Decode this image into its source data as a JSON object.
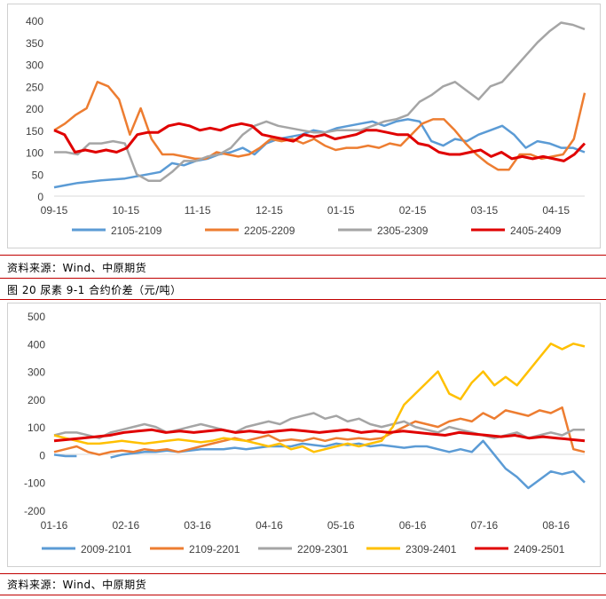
{
  "source_top": "资料来源：Wind、中原期货",
  "figure2_title": "图 20 尿素 9-1 合约价差（元/吨）",
  "source_bottom": "资料来源：Wind、中原期货",
  "chart_data": [
    {
      "type": "line",
      "title": "",
      "x_ticks": [
        "09-15",
        "10-15",
        "11-15",
        "12-15",
        "01-15",
        "02-15",
        "03-15",
        "04-15"
      ],
      "y_ticks": [
        "0",
        "50",
        "100",
        "150",
        "200",
        "250",
        "300",
        "350",
        "400"
      ],
      "ylim": [
        0,
        400
      ],
      "grid": false,
      "legend_position": "bottom",
      "series": [
        {
          "name": "2105-2109",
          "color": "#5b9bd5",
          "values": [
            20,
            25,
            30,
            33,
            36,
            38,
            40,
            45,
            50,
            55,
            75,
            70,
            80,
            85,
            95,
            100,
            110,
            95,
            120,
            130,
            135,
            140,
            150,
            145,
            155,
            160,
            165,
            170,
            160,
            170,
            175,
            170,
            125,
            115,
            130,
            125,
            140,
            150,
            160,
            140,
            110,
            125,
            120,
            110,
            110,
            100
          ]
        },
        {
          "name": "2205-2209",
          "color": "#ed7d31",
          "values": [
            150,
            165,
            185,
            200,
            260,
            250,
            220,
            140,
            200,
            130,
            95,
            95,
            90,
            85,
            85,
            100,
            95,
            90,
            95,
            110,
            130,
            125,
            130,
            120,
            130,
            115,
            105,
            110,
            110,
            115,
            110,
            120,
            115,
            140,
            165,
            175,
            175,
            150,
            120,
            95,
            75,
            60,
            60,
            95,
            95,
            85,
            90,
            95,
            130,
            235
          ]
        },
        {
          "name": "2305-2309",
          "color": "#a5a5a5",
          "values": [
            100,
            100,
            95,
            120,
            120,
            125,
            120,
            50,
            35,
            35,
            55,
            80,
            80,
            90,
            95,
            110,
            140,
            160,
            170,
            160,
            155,
            150,
            145,
            145,
            150,
            150,
            150,
            160,
            170,
            175,
            185,
            215,
            230,
            250,
            260,
            240,
            220,
            250,
            260,
            290,
            320,
            350,
            375,
            395,
            390,
            380
          ]
        },
        {
          "name": "2405-2409",
          "color": "#e00000",
          "values": [
            150,
            140,
            100,
            105,
            100,
            105,
            100,
            110,
            140,
            145,
            145,
            160,
            165,
            160,
            150,
            155,
            150,
            160,
            165,
            160,
            140,
            135,
            130,
            125,
            140,
            135,
            140,
            130,
            135,
            140,
            150,
            150,
            145,
            140,
            140,
            120,
            115,
            100,
            95,
            95,
            100,
            105,
            90,
            100,
            85,
            90,
            85,
            90,
            85,
            80,
            95,
            120
          ]
        }
      ]
    },
    {
      "type": "line",
      "title": "",
      "x_ticks": [
        "01-16",
        "02-16",
        "03-16",
        "04-16",
        "05-16",
        "06-16",
        "07-16",
        "08-16"
      ],
      "y_ticks": [
        "-200",
        "-100",
        "0",
        "100",
        "200",
        "300",
        "400",
        "500"
      ],
      "ylim": [
        -200,
        500
      ],
      "grid": false,
      "legend_position": "bottom",
      "series": [
        {
          "name": "2009-2101",
          "color": "#5b9bd5",
          "values": [
            0,
            -5,
            -5,
            null,
            null,
            -10,
            0,
            5,
            10,
            10,
            15,
            10,
            15,
            20,
            20,
            20,
            25,
            20,
            25,
            30,
            30,
            30,
            40,
            35,
            30,
            40,
            35,
            40,
            30,
            35,
            30,
            25,
            30,
            30,
            20,
            10,
            20,
            10,
            50,
            0,
            -50,
            -80,
            -120,
            -90,
            -60,
            -70,
            -60,
            -100
          ]
        },
        {
          "name": "2109-2201",
          "color": "#ed7d31",
          "values": [
            10,
            20,
            30,
            10,
            0,
            10,
            15,
            10,
            20,
            15,
            20,
            10,
            20,
            30,
            40,
            50,
            60,
            50,
            60,
            70,
            50,
            55,
            50,
            60,
            50,
            60,
            55,
            60,
            55,
            60,
            80,
            100,
            120,
            110,
            100,
            120,
            130,
            120,
            150,
            130,
            160,
            150,
            140,
            160,
            150,
            170,
            20,
            10
          ]
        },
        {
          "name": "2209-2301",
          "color": "#a5a5a5",
          "values": [
            70,
            80,
            80,
            70,
            60,
            80,
            90,
            100,
            110,
            100,
            80,
            90,
            100,
            110,
            100,
            90,
            80,
            100,
            110,
            120,
            110,
            130,
            140,
            150,
            130,
            140,
            120,
            130,
            110,
            100,
            110,
            120,
            100,
            90,
            80,
            100,
            90,
            80,
            70,
            60,
            70,
            80,
            60,
            70,
            80,
            70,
            90,
            90
          ]
        },
        {
          "name": "2309-2401",
          "color": "#ffc000",
          "values": [
            70,
            60,
            50,
            40,
            40,
            45,
            50,
            45,
            40,
            45,
            50,
            55,
            50,
            45,
            50,
            60,
            55,
            50,
            40,
            30,
            40,
            20,
            30,
            10,
            20,
            30,
            40,
            30,
            40,
            50,
            100,
            180,
            220,
            260,
            300,
            220,
            200,
            260,
            300,
            250,
            280,
            250,
            300,
            350,
            400,
            380,
            400,
            390
          ]
        },
        {
          "name": "2409-2501",
          "color": "#e00000",
          "values": [
            50,
            55,
            60,
            65,
            70,
            80,
            85,
            90,
            80,
            85,
            80,
            85,
            90,
            80,
            85,
            80,
            85,
            90,
            85,
            80,
            85,
            90,
            80,
            85,
            80,
            85,
            80,
            75,
            70,
            80,
            75,
            70,
            65,
            70,
            60,
            65,
            60,
            55,
            50
          ]
        }
      ]
    }
  ]
}
